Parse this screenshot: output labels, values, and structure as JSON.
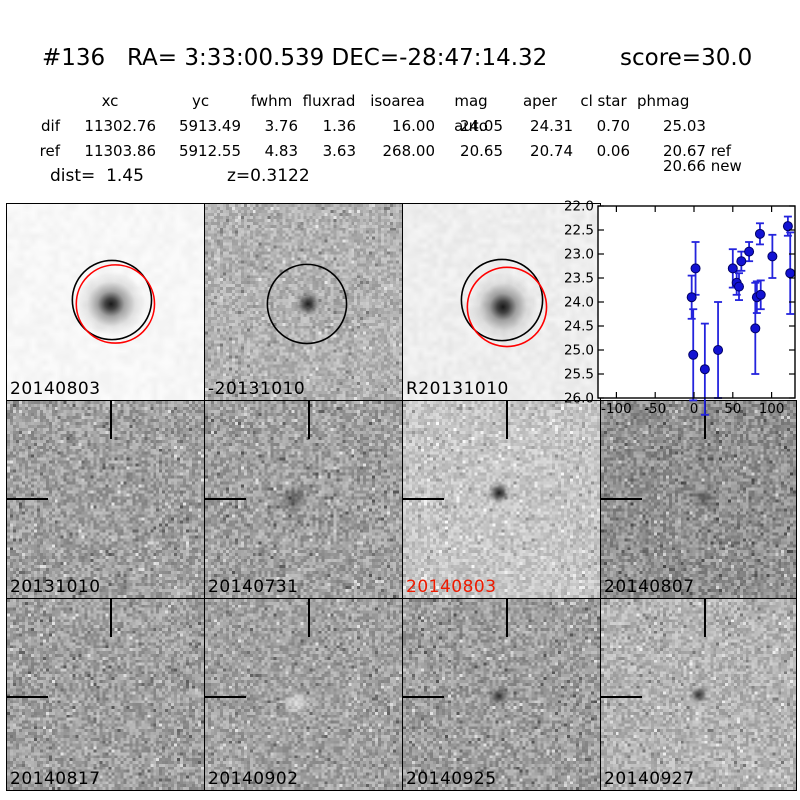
{
  "header": {
    "id": "#136",
    "coords": "RA= 3:33:00.539 DEC=-28:47:14.32",
    "score": "score=30.0"
  },
  "photometry": {
    "columns": [
      "xc",
      "yc",
      "fwhm",
      "fluxrad",
      "isoarea",
      "mag auto",
      "aper",
      "cl star",
      "phmag"
    ],
    "rows": [
      {
        "label": "dif",
        "cells": [
          "11302.76",
          "5913.49",
          "3.76",
          "1.36",
          "16.00",
          "24.05",
          "24.31",
          "0.70",
          "25.03"
        ]
      },
      {
        "label": "ref",
        "cells": [
          "11303.86",
          "5912.55",
          "4.83",
          "3.63",
          "268.00",
          "20.65",
          "20.74",
          "0.06",
          "20.67 ref"
        ]
      }
    ],
    "phmag_extra": "20.66 new",
    "dist": "dist=  1.45",
    "redshift": "z=0.3122"
  },
  "cutouts": {
    "panels": [
      {
        "label": "20140803",
        "label_color": "#000000",
        "gray": 247,
        "noise": 5,
        "res": 34,
        "smooth": true,
        "source": "bright",
        "circles": [
          "black",
          "red"
        ]
      },
      {
        "label": "-20131010",
        "label_color": "#000000",
        "gray": 178,
        "noise": 26,
        "res": 66,
        "smooth": false,
        "source": "small",
        "circles": [
          "black"
        ]
      },
      {
        "label": "R20131010",
        "label_color": "#000000",
        "gray": 238,
        "noise": 7,
        "res": 40,
        "smooth": true,
        "source": "bright",
        "circles": [
          "black",
          "red"
        ]
      },
      {
        "label": "20131010",
        "label_color": "#000000",
        "gray": 160,
        "noise": 32,
        "res": 66,
        "smooth": false,
        "source": "none",
        "crosshair": true
      },
      {
        "label": "20140731",
        "label_color": "#000000",
        "gray": 160,
        "noise": 32,
        "res": 66,
        "smooth": false,
        "source": "faint",
        "crosshair": true
      },
      {
        "label": "20140803",
        "label_color": "#ee1a00",
        "gray": 198,
        "noise": 24,
        "res": 66,
        "smooth": false,
        "source": "small",
        "crosshair": true
      },
      {
        "label": "20140807",
        "label_color": "#000000",
        "gray": 145,
        "noise": 32,
        "res": 66,
        "smooth": false,
        "source": "faint",
        "crosshair": true
      },
      {
        "label": "20140817",
        "label_color": "#000000",
        "gray": 160,
        "noise": 32,
        "res": 66,
        "smooth": false,
        "source": "none",
        "crosshair": true
      },
      {
        "label": "20140902",
        "label_color": "#000000",
        "gray": 162,
        "noise": 30,
        "res": 66,
        "smooth": false,
        "source": "white",
        "crosshair": true
      },
      {
        "label": "20140925",
        "label_color": "#000000",
        "gray": 158,
        "noise": 32,
        "res": 66,
        "smooth": false,
        "source": "small",
        "crosshair": true
      },
      {
        "label": "20140927",
        "label_color": "#000000",
        "gray": 180,
        "noise": 28,
        "res": 66,
        "smooth": false,
        "source": "small",
        "crosshair": true
      }
    ]
  },
  "chart_data": {
    "type": "scatter",
    "title": "",
    "xlabel": "",
    "ylabel": "",
    "legend": "none",
    "grid": false,
    "xlim": [
      -124,
      130
    ],
    "ylim": [
      26.0,
      22.0
    ],
    "y_axis_inverted_magnitudes": true,
    "x_ticks": [
      -100,
      -50,
      0,
      50,
      100
    ],
    "x_tick_labels": [
      "-100",
      "-50",
      "0",
      "50",
      "100"
    ],
    "y_ticks": [
      22.0,
      22.5,
      23.0,
      23.5,
      24.0,
      24.5,
      25.0,
      25.5,
      26.0
    ],
    "y_tick_labels": [
      "22.0",
      "22.5",
      "23.0",
      "23.5",
      "24.0",
      "24.5",
      "25.0",
      "25.5",
      "26.0"
    ],
    "marker_fill": "#1212d2",
    "marker_edge": "#000066",
    "errorbar_color": "#2424dd",
    "points": [
      {
        "x": -3,
        "mag": 23.9,
        "err": 0.45
      },
      {
        "x": 2,
        "mag": 23.3,
        "err": 0.55
      },
      {
        "x": -1,
        "mag": 25.1,
        "err": 0.95
      },
      {
        "x": 14,
        "mag": 25.4,
        "err": 0.95
      },
      {
        "x": 31,
        "mag": 25.0,
        "err": 1.0
      },
      {
        "x": 50,
        "mag": 23.3,
        "err": 0.4
      },
      {
        "x": 55,
        "mag": 23.6,
        "err": 0.25
      },
      {
        "x": 58,
        "mag": 23.68,
        "err": 0.28
      },
      {
        "x": 61,
        "mag": 23.15,
        "err": 0.2
      },
      {
        "x": 71,
        "mag": 22.95,
        "err": 0.2
      },
      {
        "x": 79,
        "mag": 24.55,
        "err": 0.95
      },
      {
        "x": 81,
        "mag": 23.9,
        "err": 0.33
      },
      {
        "x": 85,
        "mag": 22.58,
        "err": 0.22
      },
      {
        "x": 86,
        "mag": 23.85,
        "err": 0.3
      },
      {
        "x": 101,
        "mag": 23.05,
        "err": 0.45
      },
      {
        "x": 121,
        "mag": 22.42,
        "err": 0.2
      },
      {
        "x": 124,
        "mag": 23.4,
        "err": 0.85
      }
    ]
  }
}
